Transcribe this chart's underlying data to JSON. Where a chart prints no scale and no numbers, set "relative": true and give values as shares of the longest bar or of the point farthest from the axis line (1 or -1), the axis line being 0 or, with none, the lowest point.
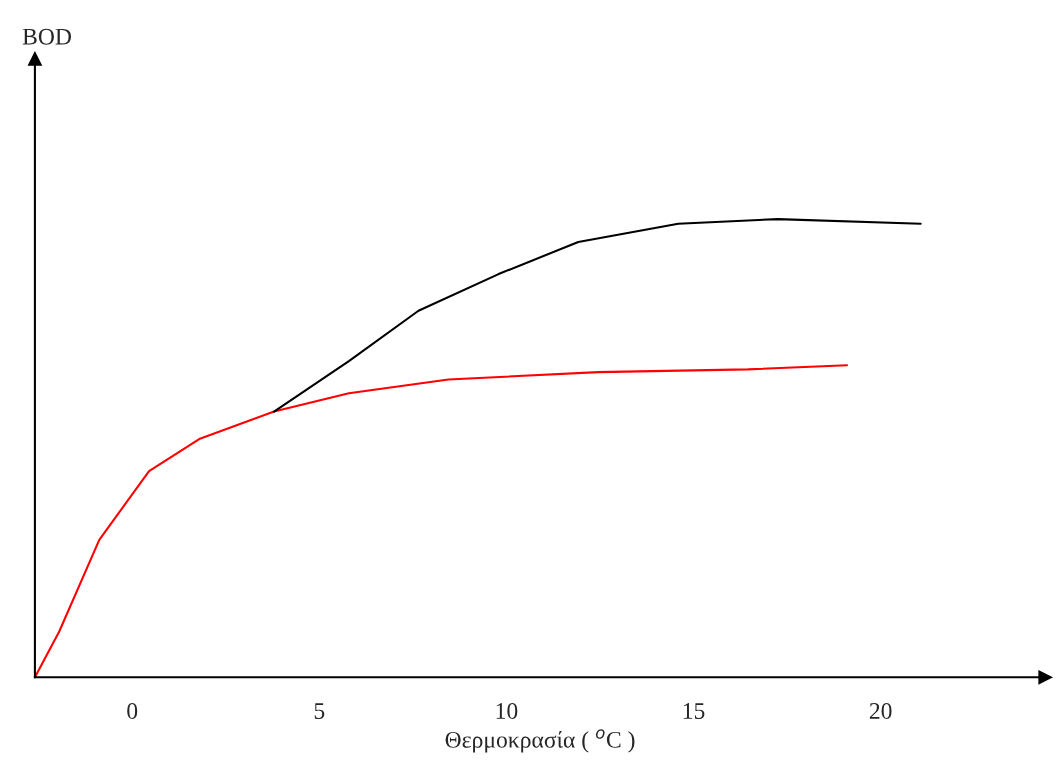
{
  "chart_data": {
    "type": "line",
    "relative": true,
    "annotations": [
      "BOD"
    ],
    "xlabel": "Θερμοκρασία ( $^{o}$C )",
    "xlim": [
      -2.6,
      24.4
    ],
    "xticks": [
      0,
      5,
      10,
      15,
      20
    ],
    "grid": false,
    "legend": false,
    "marker": "none",
    "line_style": "solid",
    "series": [
      {
        "color": "#ff0000",
        "x": [
          -2.6,
          -1.95,
          -0.88,
          0.45,
          1.79,
          3.79,
          5.79,
          8.45,
          12.45,
          16.45,
          19.1
        ],
        "values": [
          0,
          0.1,
          0.3,
          0.45,
          0.52,
          0.58,
          0.62,
          0.65,
          0.666,
          0.672,
          0.681
        ]
      },
      {
        "color": "#000000",
        "x": [
          3.79,
          5.79,
          7.65,
          9.79,
          11.92,
          14.59,
          17.25,
          21.07
        ],
        "values": [
          0.58,
          0.69,
          0.8,
          0.88,
          0.95,
          0.99,
          1.0,
          0.99
        ]
      }
    ]
  }
}
